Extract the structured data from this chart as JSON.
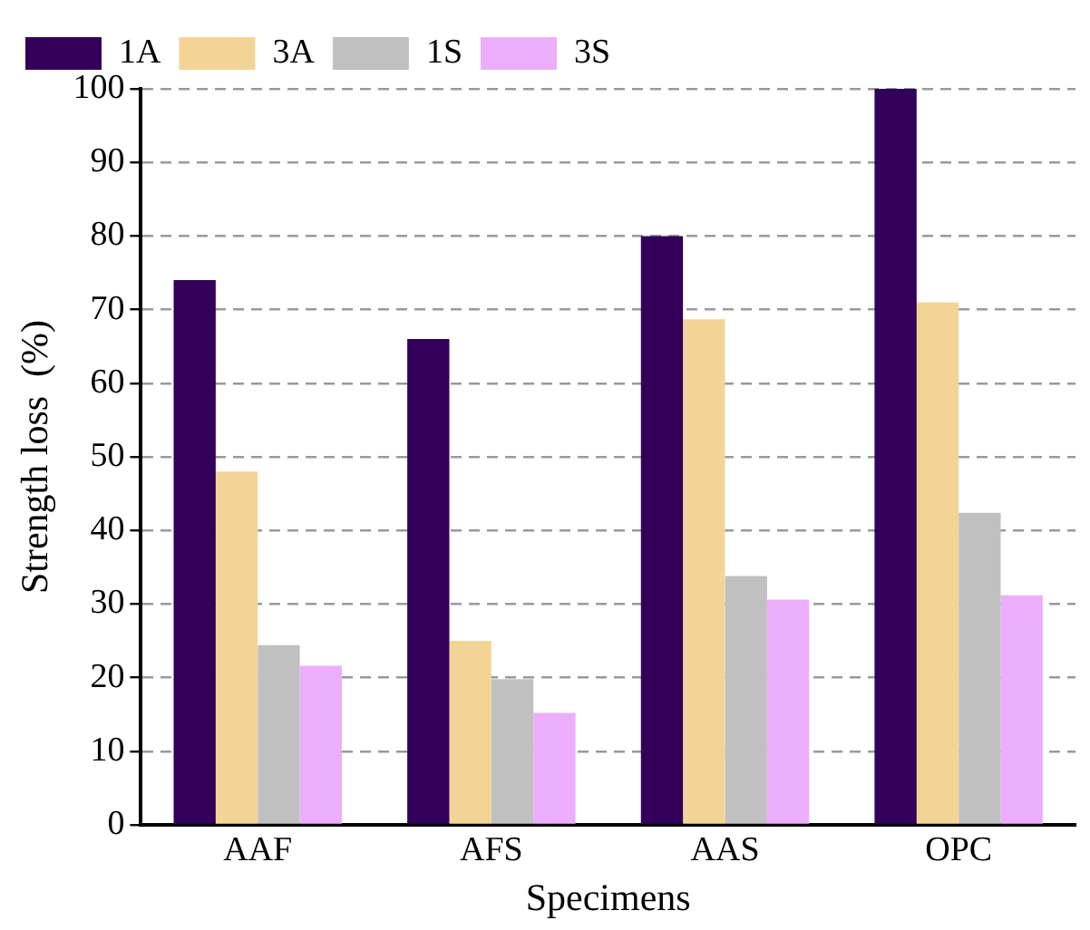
{
  "chart_data": {
    "type": "bar",
    "xlabel": "Specimens",
    "ylabel": "Strength loss  (%)",
    "categories": [
      "AAF",
      "AFS",
      "AAS",
      "OPC"
    ],
    "series": [
      {
        "name": "1A",
        "color": "#330059",
        "values": [
          74,
          66,
          80,
          100
        ]
      },
      {
        "name": "3A",
        "color": "#f2d596",
        "values": [
          48,
          25,
          68.7,
          71
        ]
      },
      {
        "name": "1S",
        "color": "#c0c0c0",
        "values": [
          24.4,
          19.8,
          33.8,
          42.4
        ]
      },
      {
        "name": "3S",
        "color": "#ecaefc",
        "values": [
          21.6,
          15.2,
          30.6,
          31.2
        ]
      }
    ],
    "ylim": [
      0,
      100
    ],
    "yticks": [
      0,
      10,
      20,
      30,
      40,
      50,
      60,
      70,
      80,
      90,
      100
    ],
    "grid": "y",
    "legend": "top left"
  }
}
